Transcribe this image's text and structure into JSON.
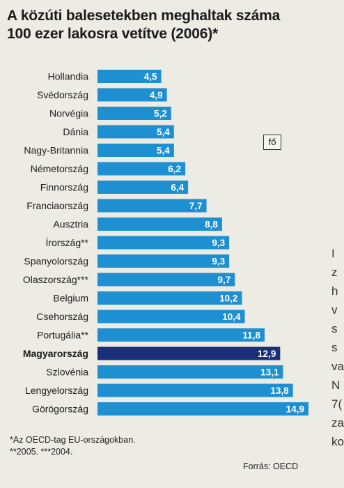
{
  "title": {
    "line1": "A közúti balesetekben meghaltak száma",
    "line2": "100 ezer lakosra vetítve (2006)*"
  },
  "unit_label": "fő",
  "footnotes": {
    "line1": "*Az OECD-tag EU-országokban.",
    "line2": "**2005. ***2004."
  },
  "source": "Forrás: OECD",
  "side_text": [
    "I",
    "z",
    "h",
    "v",
    "s",
    "s",
    "va",
    "N",
    "7(",
    "za",
    "ko"
  ],
  "colors": {
    "bar": "#1e8fd0",
    "highlight": "#1a2f78",
    "value_text": "#ffffff"
  },
  "chart_data": {
    "type": "bar",
    "orientation": "horizontal",
    "categories": [
      "Hollandia",
      "Svédország",
      "Norvégia",
      "Dánia",
      "Nagy-Britannia",
      "Németország",
      "Finnország",
      "Franciaország",
      "Ausztria",
      "Írország**",
      "Spanyolország",
      "Olaszország***",
      "Belgium",
      "Csehország",
      "Portugália**",
      "Magyarország",
      "Szlovénia",
      "Lengyelország",
      "Görögország"
    ],
    "values": [
      4.5,
      4.9,
      5.2,
      5.4,
      5.4,
      6.2,
      6.4,
      7.7,
      8.8,
      9.3,
      9.3,
      9.7,
      10.2,
      10.4,
      11.8,
      12.9,
      13.1,
      13.8,
      14.9
    ],
    "value_labels": [
      "4,5",
      "4,9",
      "5,2",
      "5,4",
      "5,4",
      "6,2",
      "6,4",
      "7,7",
      "8,8",
      "9,3",
      "9,3",
      "9,7",
      "10,2",
      "10,4",
      "11,8",
      "12,9",
      "13,1",
      "13,8",
      "14,9"
    ],
    "highlight": "Magyarország",
    "xlim": [
      0,
      14.9
    ],
    "grid": false,
    "legend": "none"
  }
}
